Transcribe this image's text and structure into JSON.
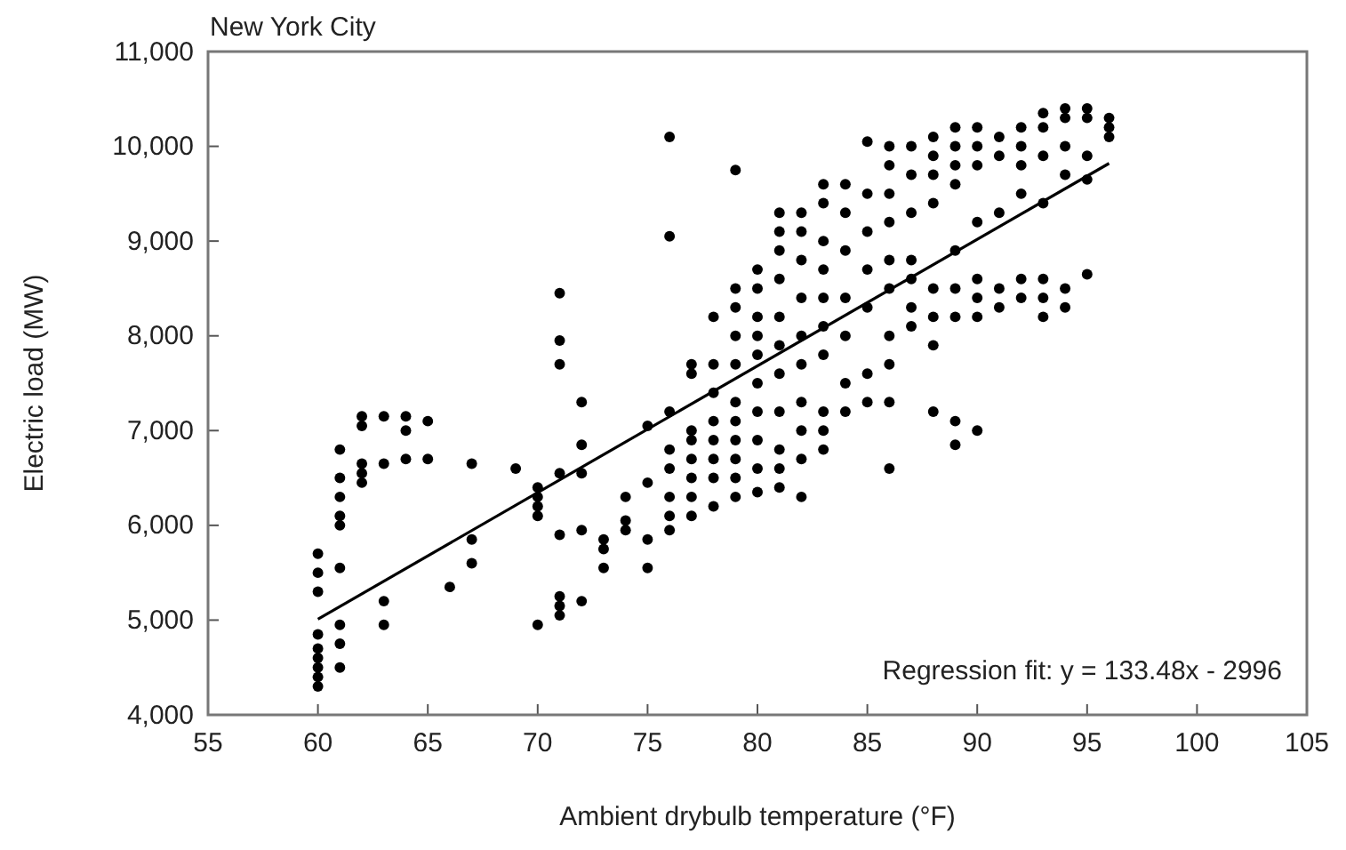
{
  "chart_data": {
    "type": "scatter",
    "title": "New York City",
    "xlabel": "Ambient drybulb temperature (°F)",
    "ylabel": "Electric load (MW)",
    "annotations": [
      "Regression fit: y = 133.48x - 2996"
    ],
    "xlim": [
      55,
      105
    ],
    "xticks": [
      55,
      60,
      65,
      70,
      75,
      80,
      85,
      90,
      95,
      100,
      105
    ],
    "ylim": [
      4000,
      11000
    ],
    "yticks": [
      {
        "value": 4000,
        "label": "4,000"
      },
      {
        "value": 5000,
        "label": "5,000"
      },
      {
        "value": 6000,
        "label": "6,000"
      },
      {
        "value": 7000,
        "label": "7,000"
      },
      {
        "value": 8000,
        "label": "8,000"
      },
      {
        "value": 9000,
        "label": "9,000"
      },
      {
        "value": 10000,
        "label": "10,000"
      },
      {
        "value": 11000,
        "label": "11,000"
      }
    ],
    "grid": false,
    "marker": "circle",
    "series": [
      {
        "color": "#000000",
        "x": [
          60,
          60,
          60,
          60,
          60,
          60,
          60,
          60,
          60,
          61,
          61,
          61,
          61,
          61,
          61,
          61,
          61,
          61,
          62,
          62,
          62,
          62,
          62,
          63,
          63,
          63,
          63,
          64,
          64,
          64,
          65,
          65,
          66,
          67,
          67,
          67,
          69,
          70,
          70,
          70,
          70,
          70,
          71,
          71,
          71,
          71,
          71,
          71,
          71,
          71,
          72,
          72,
          72,
          72,
          72,
          73,
          73,
          73,
          74,
          74,
          74,
          75,
          75,
          75,
          75,
          76,
          76,
          76,
          76,
          76,
          76,
          76,
          76,
          77,
          77,
          77,
          77,
          77,
          77,
          77,
          77,
          78,
          78,
          78,
          78,
          78,
          78,
          78,
          78,
          79,
          79,
          79,
          79,
          79,
          79,
          79,
          79,
          79,
          79,
          79,
          80,
          80,
          80,
          80,
          80,
          80,
          80,
          80,
          80,
          80,
          81,
          81,
          81,
          81,
          81,
          81,
          81,
          81,
          81,
          81,
          81,
          82,
          82,
          82,
          82,
          82,
          82,
          82,
          82,
          82,
          82,
          83,
          83,
          83,
          83,
          83,
          83,
          83,
          83,
          83,
          83,
          84,
          84,
          84,
          84,
          84,
          84,
          84,
          85,
          85,
          85,
          85,
          85,
          85,
          85,
          86,
          86,
          86,
          86,
          86,
          86,
          86,
          86,
          86,
          86,
          87,
          87,
          87,
          87,
          87,
          87,
          87,
          88,
          88,
          88,
          88,
          88,
          88,
          88,
          88,
          89,
          89,
          89,
          89,
          89,
          89,
          89,
          89,
          89,
          90,
          90,
          90,
          90,
          90,
          90,
          90,
          90,
          91,
          91,
          91,
          91,
          91,
          92,
          92,
          92,
          92,
          92,
          92,
          93,
          93,
          93,
          93,
          93,
          93,
          93,
          94,
          94,
          94,
          94,
          94,
          94,
          95,
          95,
          95,
          95,
          95,
          96,
          96,
          96
        ],
        "values": [
          4300,
          4400,
          4500,
          4600,
          4700,
          4850,
          5300,
          5500,
          5700,
          4500,
          4750,
          4950,
          5550,
          6000,
          6100,
          6300,
          6500,
          6800,
          6450,
          6550,
          6650,
          7050,
          7150,
          4950,
          5200,
          6650,
          7150,
          6700,
          7000,
          7150,
          6700,
          7100,
          5350,
          5600,
          5850,
          6650,
          6600,
          4950,
          6100,
          6200,
          6300,
          6400,
          5050,
          5150,
          5250,
          5900,
          6550,
          7700,
          7950,
          8450,
          5200,
          5950,
          6550,
          6850,
          7300,
          5550,
          5750,
          5850,
          5950,
          6050,
          6300,
          5550,
          5850,
          6450,
          7050,
          5950,
          6100,
          6300,
          6600,
          6800,
          7200,
          9050,
          10100,
          6100,
          6300,
          6500,
          6700,
          6900,
          7000,
          7600,
          7700,
          6200,
          6500,
          6700,
          6900,
          7100,
          7400,
          7700,
          8200,
          6300,
          6500,
          6700,
          6900,
          7100,
          7300,
          7700,
          8000,
          8300,
          8500,
          9750,
          6350,
          6600,
          6900,
          7200,
          7500,
          7800,
          8000,
          8200,
          8500,
          8700,
          6400,
          6600,
          6800,
          7200,
          7600,
          7900,
          8200,
          8600,
          8900,
          9100,
          9300,
          6300,
          6700,
          7000,
          7300,
          7700,
          8000,
          8400,
          8800,
          9100,
          9300,
          6800,
          7000,
          7200,
          7800,
          8100,
          8400,
          8700,
          9000,
          9400,
          9600,
          7200,
          7500,
          8000,
          8400,
          8900,
          9300,
          9600,
          7300,
          7600,
          8300,
          8700,
          9100,
          9500,
          10050,
          6600,
          7300,
          7700,
          8000,
          8500,
          8800,
          9200,
          9500,
          9800,
          10000,
          8100,
          8300,
          8600,
          8800,
          9300,
          9700,
          10000,
          7200,
          7900,
          8200,
          8500,
          9400,
          9700,
          9900,
          10100,
          6850,
          7100,
          8200,
          8500,
          8900,
          9600,
          9800,
          10000,
          10200,
          7000,
          8200,
          8400,
          8600,
          9200,
          9800,
          10000,
          10200,
          8300,
          8500,
          9300,
          9900,
          10100,
          8400,
          8600,
          9500,
          9800,
          10000,
          10200,
          8200,
          8400,
          8600,
          9400,
          9900,
          10200,
          10350,
          8300,
          8500,
          9700,
          10000,
          10300,
          10400,
          8650,
          9650,
          9900,
          10300,
          10400,
          10100,
          10200,
          10300
        ]
      },
      {
        "type": "line",
        "color": "#000000",
        "marker": "none",
        "x": [
          60,
          96
        ],
        "values": [
          5010,
          9820
        ]
      }
    ]
  }
}
